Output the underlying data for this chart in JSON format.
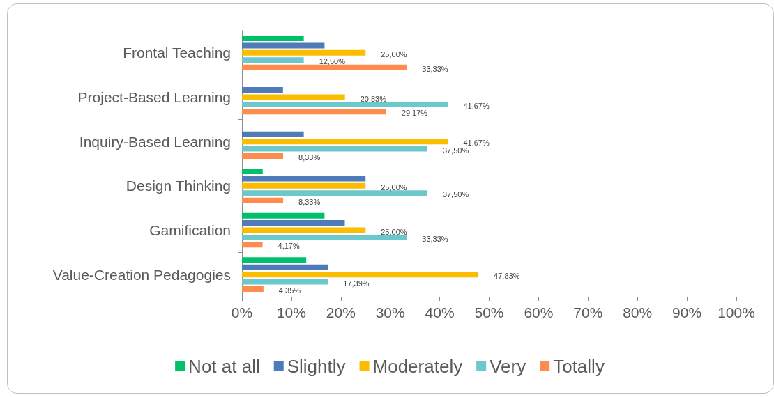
{
  "chart_data": {
    "type": "bar",
    "orientation": "horizontal",
    "categories": [
      "Frontal Teaching",
      "Project-Based Learning",
      "Inquiry-Based Learning",
      "Design Thinking",
      "Gamification",
      "Value-Creation Pedagogies"
    ],
    "series": [
      {
        "name": "Not at all",
        "color": "#00c06b",
        "values": [
          12.5,
          0,
          0,
          4.2,
          16.7,
          13
        ]
      },
      {
        "name": "Slightly",
        "color": "#4f7bb8",
        "values": [
          16.7,
          8.3,
          12.5,
          25,
          20.8,
          17.4
        ]
      },
      {
        "name": "Moderately",
        "color": "#fbbd00",
        "values": [
          25,
          20.83,
          41.67,
          25,
          25,
          47.83
        ],
        "value_labels": [
          "25,00%",
          "20,83%",
          "41,67%",
          "25,00%",
          "25,00%",
          "47,83%"
        ]
      },
      {
        "name": "Very",
        "color": "#6bc9cc",
        "values": [
          12.5,
          41.67,
          37.5,
          37.5,
          33.33,
          17.39
        ],
        "value_labels": [
          "12,50%",
          "41,67%",
          "37,50%",
          "37,50%",
          "33,33%",
          "17,39%"
        ]
      },
      {
        "name": "Totally",
        "color": "#ff8c4f",
        "values": [
          33.33,
          29.17,
          8.33,
          8.33,
          4.17,
          4.35
        ],
        "value_labels": [
          "33,33%",
          "29,17%",
          "8,33%",
          "8,33%",
          "4,17%",
          "4,35%"
        ]
      }
    ],
    "xlim": [
      0,
      100
    ],
    "xticks": [
      {
        "value": 0,
        "label": "0%"
      },
      {
        "value": 10,
        "label": "10%"
      },
      {
        "value": 20,
        "label": "20%"
      },
      {
        "value": 30,
        "label": "30%"
      },
      {
        "value": 40,
        "label": "40%"
      },
      {
        "value": 50,
        "label": "50%"
      },
      {
        "value": 60,
        "label": "60%"
      },
      {
        "value": 70,
        "label": "70%"
      },
      {
        "value": 80,
        "label": "80%"
      },
      {
        "value": 90,
        "label": "90%"
      },
      {
        "value": 100,
        "label": "100%"
      }
    ],
    "grid": false,
    "legend": "bottom"
  }
}
